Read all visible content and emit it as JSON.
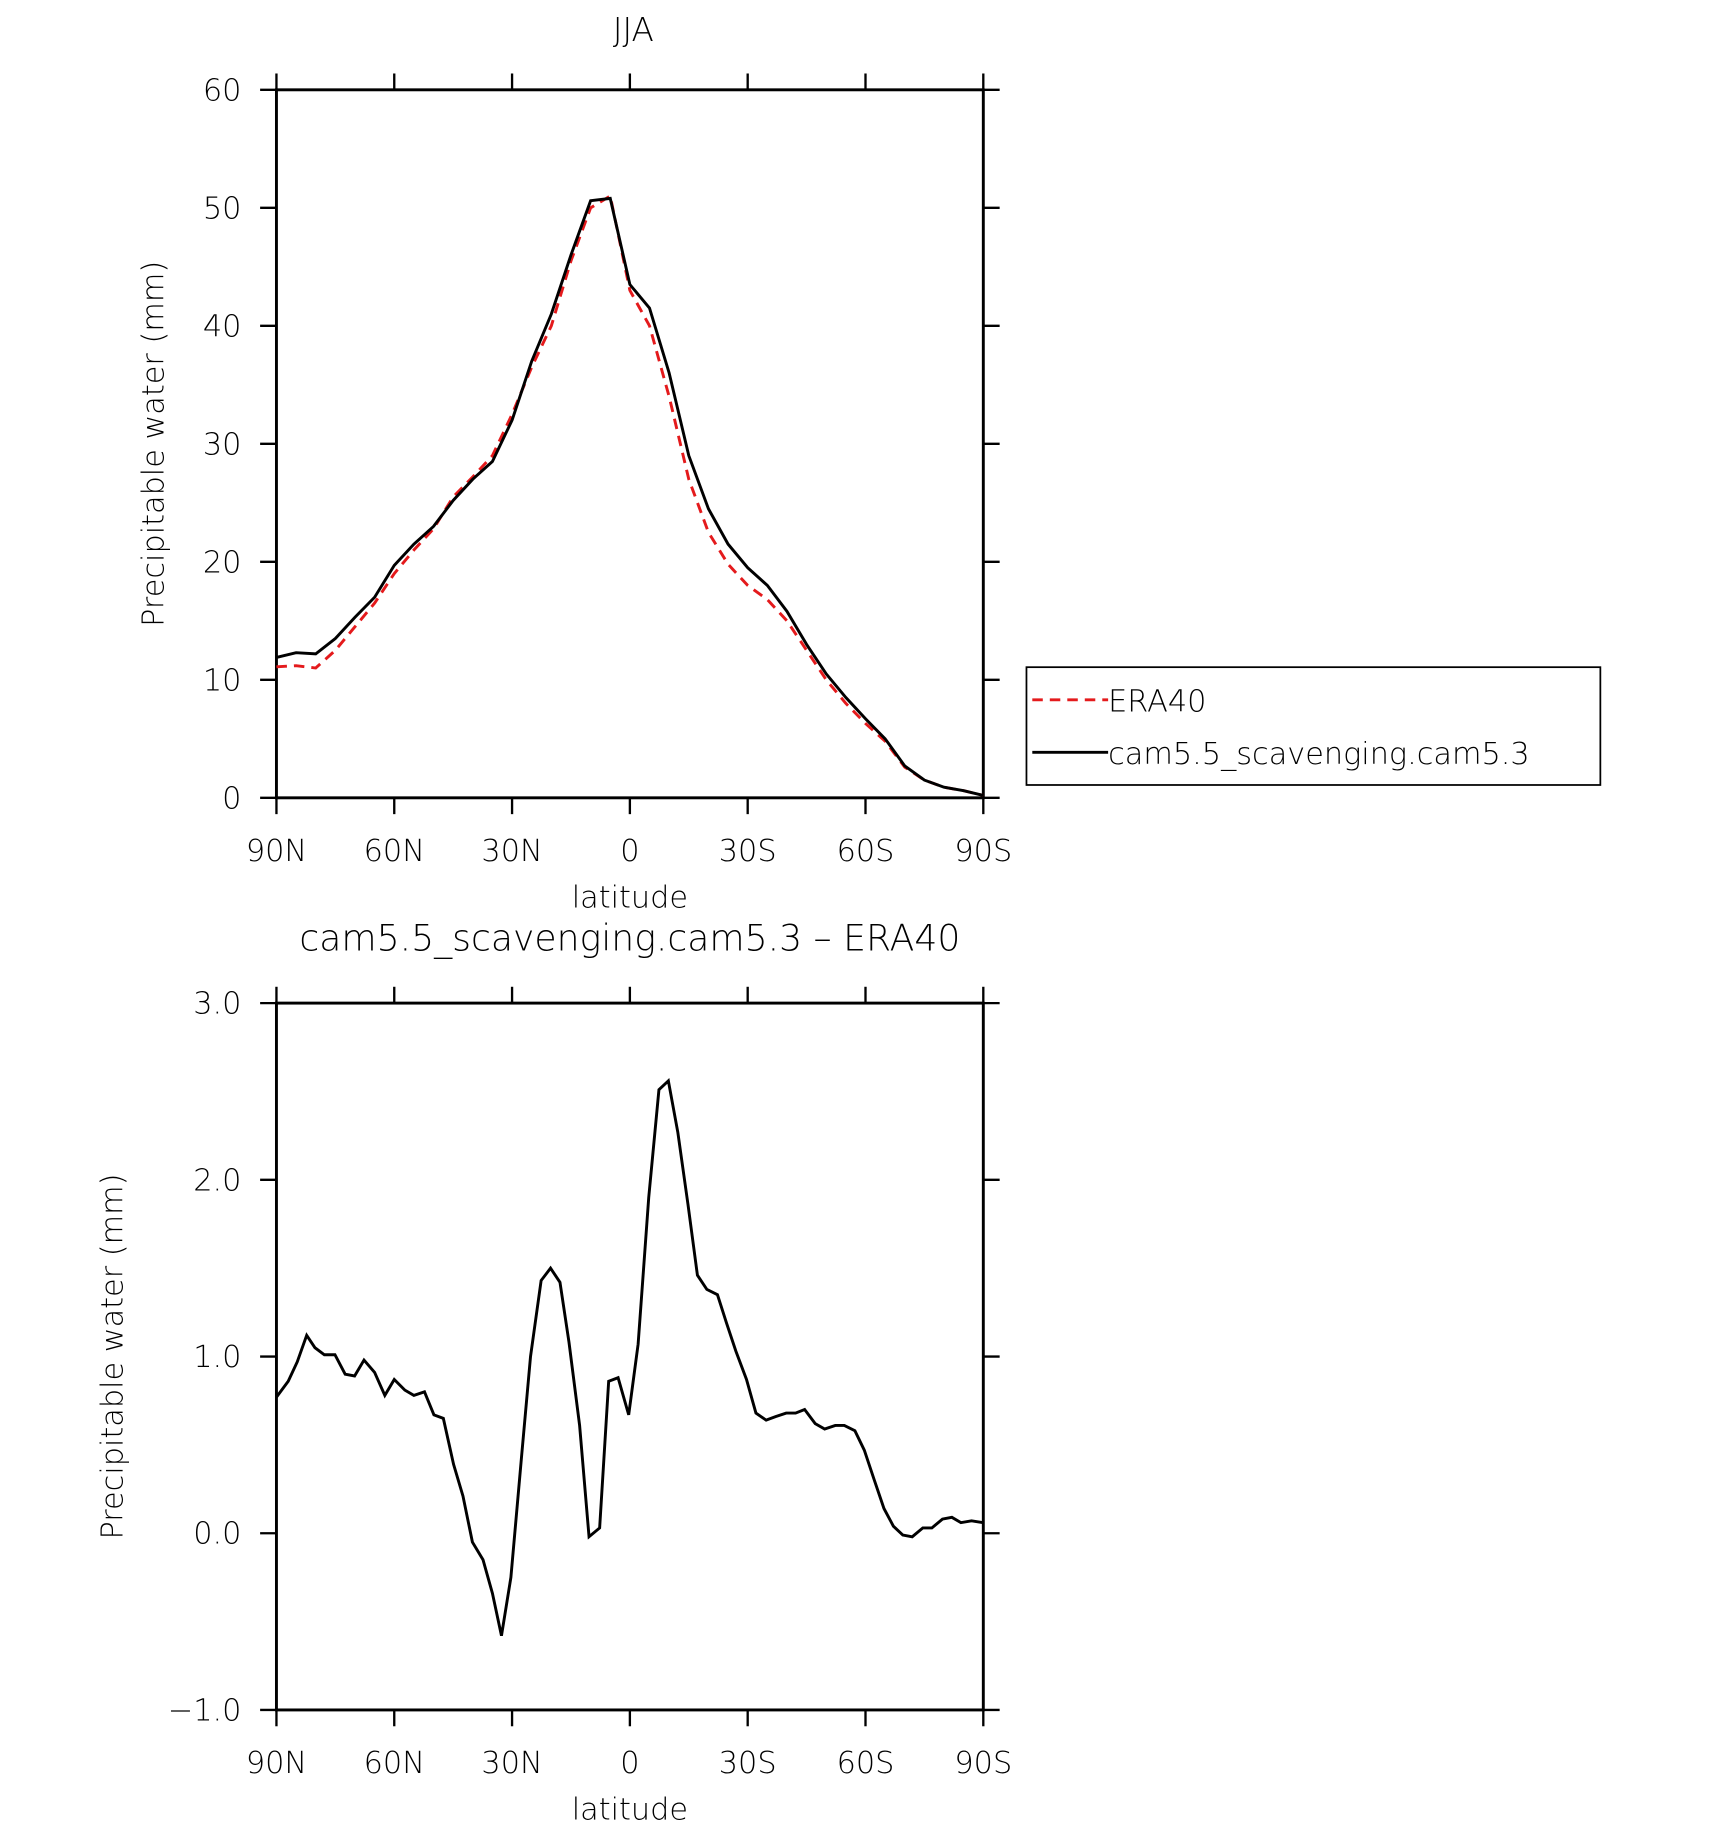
{
  "chart_data": [
    {
      "type": "line",
      "title": "JJA",
      "xlabel": "latitude",
      "ylabel": "Precipitable water (mm)",
      "x": [
        90,
        85,
        80,
        75,
        70,
        65,
        60,
        55,
        50,
        45,
        40,
        35,
        30,
        25,
        20,
        15,
        10,
        5,
        0,
        -5,
        -10,
        -15,
        -20,
        -25,
        -30,
        -35,
        -40,
        -45,
        -50,
        -55,
        -60,
        -65,
        -70,
        -75,
        -80,
        -85,
        -90
      ],
      "series": [
        {
          "name": "ERA40",
          "color": "#e41a1c",
          "line_style": "dashed",
          "values": [
            11.1,
            11.2,
            11.0,
            12.5,
            14.5,
            16.5,
            19.0,
            21.0,
            22.8,
            25.5,
            27.2,
            29.0,
            32.5,
            36.5,
            40.0,
            45.5,
            50.0,
            51.0,
            43.0,
            40.0,
            34.0,
            27.0,
            22.5,
            19.8,
            18.0,
            16.8,
            15.0,
            12.5,
            10.0,
            8.0,
            6.3,
            4.8,
            2.6,
            1.5,
            0.9,
            0.6,
            0.2
          ]
        },
        {
          "name": "cam5.5_scavenging.cam5.3",
          "color": "#000000",
          "line_style": "solid",
          "values": [
            11.9,
            12.3,
            12.2,
            13.5,
            15.3,
            17.0,
            19.7,
            21.5,
            23.0,
            25.2,
            27.0,
            28.5,
            32.0,
            37.0,
            41.0,
            46.0,
            50.6,
            50.8,
            43.5,
            41.5,
            36.0,
            29.0,
            24.5,
            21.5,
            19.5,
            18.0,
            15.8,
            13.0,
            10.5,
            8.5,
            6.7,
            5.0,
            2.7,
            1.5,
            0.9,
            0.6,
            0.2
          ]
        }
      ],
      "xlim": [
        90,
        -90
      ],
      "xticks": [
        {
          "value": 90,
          "label": "90N"
        },
        {
          "value": 60,
          "label": "60N"
        },
        {
          "value": 30,
          "label": "30N"
        },
        0,
        {
          "value": -30,
          "label": "30S"
        },
        {
          "value": -60,
          "label": "60S"
        },
        {
          "value": -90,
          "label": "90S"
        }
      ],
      "ylim": [
        0,
        60
      ],
      "yticks": [
        0,
        10,
        20,
        30,
        40,
        50,
        60
      ],
      "grid": false,
      "legend": "right"
    },
    {
      "type": "line",
      "title": "cam5.5_scavenging.cam5.3 – ERA40",
      "xlabel": "latitude",
      "ylabel": "Precipitable water (mm)",
      "x": [
        90,
        87,
        84.7,
        82.3,
        80.2,
        77.8,
        75.1,
        72.5,
        70.1,
        67.7,
        65,
        62.4,
        60,
        57.3,
        55,
        52.3,
        49.9,
        47.5,
        44.9,
        42.5,
        40.1,
        37.4,
        35,
        32.7,
        30.3,
        27.6,
        25.3,
        22.6,
        20.2,
        17.8,
        15.5,
        12.8,
        10.4,
        7.7,
        5.4,
        3,
        0.3,
        -2.1,
        -4.8,
        -7.4,
        -9.8,
        -12.2,
        -14.8,
        -17.2,
        -19.6,
        -22.3,
        -24.6,
        -27,
        -29.7,
        -32.1,
        -34.7,
        -37.1,
        -39.8,
        -42.2,
        -44.5,
        -47.2,
        -49.6,
        -52.3,
        -54.6,
        -57.3,
        -59.7,
        -62.1,
        -64.7,
        -67.1,
        -69.5,
        -71.9,
        -74.6,
        -76.9,
        -79.6,
        -82,
        -84.3,
        -87,
        -90
      ],
      "values": [
        0.77,
        0.86,
        0.97,
        1.12,
        1.05,
        1.01,
        1.01,
        0.9,
        0.89,
        0.98,
        0.91,
        0.78,
        0.87,
        0.81,
        0.78,
        0.8,
        0.67,
        0.65,
        0.39,
        0.21,
        -0.05,
        -0.15,
        -0.34,
        -0.58,
        -0.25,
        0.43,
        1.0,
        1.43,
        1.5,
        1.42,
        1.08,
        0.61,
        -0.02,
        0.03,
        0.86,
        0.88,
        0.67,
        1.07,
        1.9,
        2.51,
        2.56,
        2.27,
        1.86,
        1.46,
        1.38,
        1.35,
        1.19,
        1.03,
        0.87,
        0.68,
        0.64,
        0.66,
        0.68,
        0.68,
        0.7,
        0.62,
        0.59,
        0.61,
        0.61,
        0.58,
        0.47,
        0.31,
        0.14,
        0.04,
        -0.01,
        -0.02,
        0.03,
        0.03,
        0.08,
        0.09,
        0.06,
        0.07,
        0.06
      ],
      "color": "#000000",
      "xlim": [
        90,
        -90
      ],
      "xticks": [
        {
          "value": 90,
          "label": "90N"
        },
        {
          "value": 60,
          "label": "60N"
        },
        {
          "value": 30,
          "label": "30N"
        },
        0,
        {
          "value": -30,
          "label": "30S"
        },
        {
          "value": -60,
          "label": "60S"
        },
        {
          "value": -90,
          "label": "90S"
        }
      ],
      "ylim": [
        -1,
        3
      ],
      "yticks": [
        {
          "value": -1,
          "label": "−1.0"
        },
        {
          "value": 0,
          "label": "0.0"
        },
        {
          "value": 1,
          "label": "1.0"
        },
        {
          "value": 2,
          "label": "2.0"
        },
        {
          "value": 3,
          "label": "3.0"
        }
      ],
      "grid": false
    }
  ]
}
